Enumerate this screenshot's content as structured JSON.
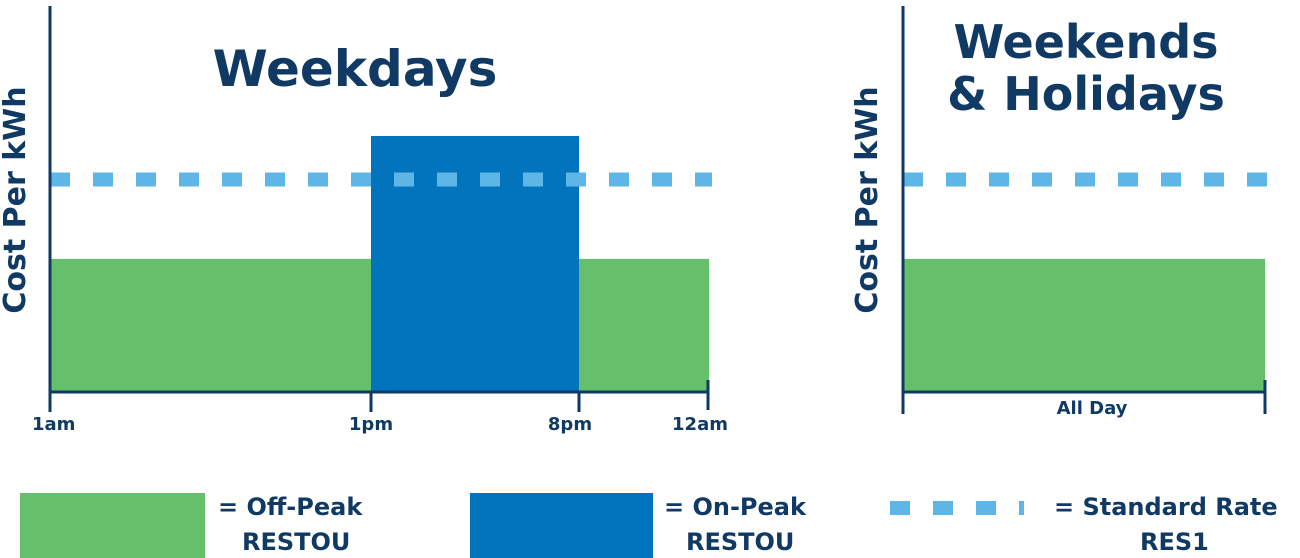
{
  "colors": {
    "off_peak": "#66bf6a",
    "on_peak": "#0274be",
    "standard": "#5db6e6",
    "axis": "#103a63",
    "text": "#103a63"
  },
  "chart_data": [
    {
      "type": "bar",
      "title": "Weekdays",
      "ylabel": "Cost Per kWh",
      "x_ticks": [
        "1am",
        "1pm",
        "8pm",
        "12am"
      ],
      "segments": [
        {
          "from": "1am",
          "to": "1pm",
          "rate": "Off-Peak RESTOU",
          "relative_level": 0.52
        },
        {
          "from": "1pm",
          "to": "8pm",
          "rate": "On-Peak RESTOU",
          "relative_level": 1.0
        },
        {
          "from": "8pm",
          "to": "12am",
          "rate": "Off-Peak RESTOU",
          "relative_level": 0.52
        }
      ],
      "reference_line": {
        "rate": "Standard Rate RES1",
        "relative_level": 0.83,
        "style": "dashed"
      }
    },
    {
      "type": "bar",
      "title_lines": [
        "Weekends",
        "& Holidays"
      ],
      "ylabel": "Cost Per kWh",
      "x_ticks": [
        "All Day"
      ],
      "segments": [
        {
          "from": "All Day",
          "to": "All Day",
          "rate": "Off-Peak RESTOU",
          "relative_level": 0.52
        }
      ],
      "reference_line": {
        "rate": "Standard Rate RES1",
        "relative_level": 0.83,
        "style": "dashed"
      }
    }
  ],
  "legend": [
    {
      "key": "off_peak",
      "line1": "= Off-Peak",
      "line2": "RESTOU"
    },
    {
      "key": "on_peak",
      "line1": "= On-Peak",
      "line2": "RESTOU"
    },
    {
      "key": "standard",
      "line1": "= Standard Rate",
      "line2": "RES1"
    }
  ]
}
